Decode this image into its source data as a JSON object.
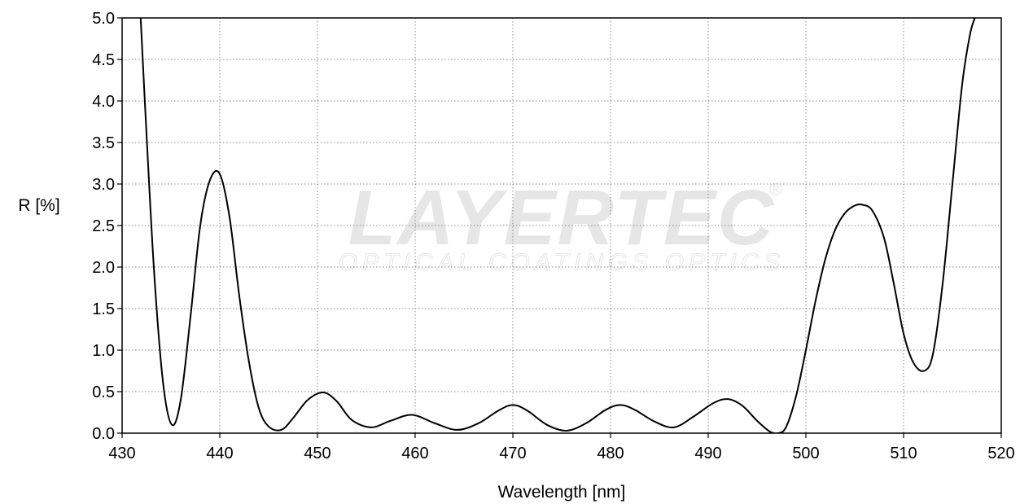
{
  "watermark": {
    "brand": "LAYERTEC",
    "tagline": "OPTICAL COATINGS  OPTICS",
    "registered": "®"
  },
  "chart_data": {
    "type": "line",
    "xlabel": "Wavelength [nm]",
    "ylabel": "R [%]",
    "xlim": [
      430,
      520
    ],
    "ylim": [
      0,
      5
    ],
    "xticks": [
      430,
      440,
      450,
      460,
      470,
      480,
      490,
      500,
      510,
      520
    ],
    "yticks": [
      "0.0",
      "0.5",
      "1.0",
      "1.5",
      "2.0",
      "2.5",
      "3.0",
      "3.5",
      "4.0",
      "4.5",
      "5.0"
    ],
    "grid": true,
    "line_color": "#000000",
    "series": [
      {
        "x": [
          431.9,
          432.5,
          433.3,
          434.2,
          435.1,
          436.0,
          437.0,
          438.0,
          439.0,
          440.0,
          441.0,
          442.0,
          443.0,
          444.0,
          445.0,
          446.3,
          447.5,
          449.0,
          450.6,
          452.0,
          453.5,
          455.5,
          457.5,
          459.7,
          462.0,
          464.3,
          466.5,
          468.5,
          470.0,
          471.5,
          473.5,
          475.5,
          477.5,
          479.5,
          481.0,
          482.5,
          484.5,
          486.5,
          488.5,
          490.5,
          492.0,
          493.5,
          495.0,
          496.3,
          497.2,
          498.0,
          499.0,
          500.0,
          501.0,
          502.0,
          503.0,
          504.0,
          505.0,
          505.8,
          506.8,
          508.0,
          509.0,
          510.0,
          511.0,
          512.1,
          513.0,
          514.0,
          515.0,
          516.0,
          516.8,
          517.3
        ],
        "y": [
          5.0,
          3.6,
          1.9,
          0.6,
          0.1,
          0.4,
          1.4,
          2.5,
          3.05,
          3.12,
          2.6,
          1.65,
          0.85,
          0.3,
          0.08,
          0.04,
          0.18,
          0.4,
          0.49,
          0.38,
          0.16,
          0.07,
          0.15,
          0.22,
          0.12,
          0.04,
          0.12,
          0.27,
          0.34,
          0.27,
          0.1,
          0.03,
          0.12,
          0.28,
          0.34,
          0.28,
          0.14,
          0.07,
          0.2,
          0.36,
          0.41,
          0.33,
          0.15,
          0.02,
          0.0,
          0.08,
          0.45,
          1.0,
          1.6,
          2.1,
          2.45,
          2.65,
          2.74,
          2.75,
          2.68,
          2.35,
          1.8,
          1.2,
          0.85,
          0.75,
          0.95,
          1.8,
          3.0,
          4.2,
          4.8,
          5.0
        ]
      }
    ]
  }
}
